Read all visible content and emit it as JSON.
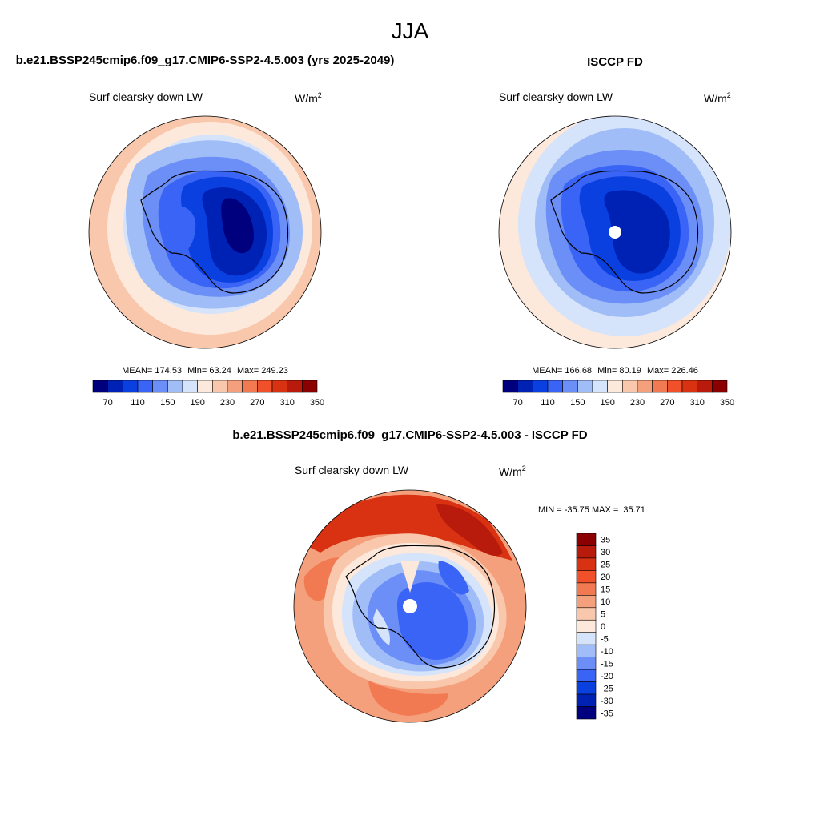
{
  "season": "JJA",
  "panels": [
    {
      "title": "b.e21.BSSP245cmip6.f09_g17.CMIP6-SSP2-4.5.003 (yrs 2025-2049)",
      "variable": "Surf clearsky down LW",
      "units_base": "W/m",
      "units_exp": "2",
      "stats": {
        "mean_label": "MEAN=",
        "mean": "174.53",
        "min_label": "Min=",
        "min": "63.24",
        "max_label": "Max=",
        "max": "249.23"
      }
    },
    {
      "title": "ISCCP FD",
      "variable": "Surf clearsky down LW",
      "units_base": "W/m",
      "units_exp": "2",
      "stats": {
        "mean_label": "MEAN=",
        "mean": "166.68",
        "min_label": "Min=",
        "min": "80.19",
        "max_label": "Max=",
        "max": "226.46"
      }
    }
  ],
  "difference": {
    "title": "b.e21.BSSP245cmip6.f09_g17.CMIP6-SSP2-4.5.003 - ISCCP FD",
    "variable": "Surf clearsky down LW",
    "units_base": "W/m",
    "units_exp": "2",
    "minmax": "MIN = -35.75 MAX =  35.71"
  },
  "colorbar_main": {
    "colors": [
      "#00007f",
      "#0022b4",
      "#0a3fe0",
      "#3a64f5",
      "#6b8ef7",
      "#a0bdf8",
      "#d5e3fb",
      "#fde9dc",
      "#f8c7ac",
      "#f5a07c",
      "#f27a52",
      "#f0502a",
      "#d83213",
      "#b81b0b",
      "#8b0000"
    ],
    "tick_labels": [
      "70",
      "110",
      "150",
      "190",
      "230",
      "270",
      "310",
      "350"
    ]
  },
  "colorbar_diff": {
    "colors": [
      "#8b0000",
      "#b81b0b",
      "#d83213",
      "#f0502a",
      "#f27a52",
      "#f5a07c",
      "#f8c7ac",
      "#fde9dc",
      "#d5e3fb",
      "#a0bdf8",
      "#6b8ef7",
      "#3a64f5",
      "#0a3fe0",
      "#0022b4",
      "#00007f"
    ],
    "tick_labels": [
      "35",
      "30",
      "25",
      "20",
      "15",
      "10",
      "5",
      "0",
      "-5",
      "-10",
      "-15",
      "-20",
      "-25",
      "-30",
      "-35"
    ]
  }
}
